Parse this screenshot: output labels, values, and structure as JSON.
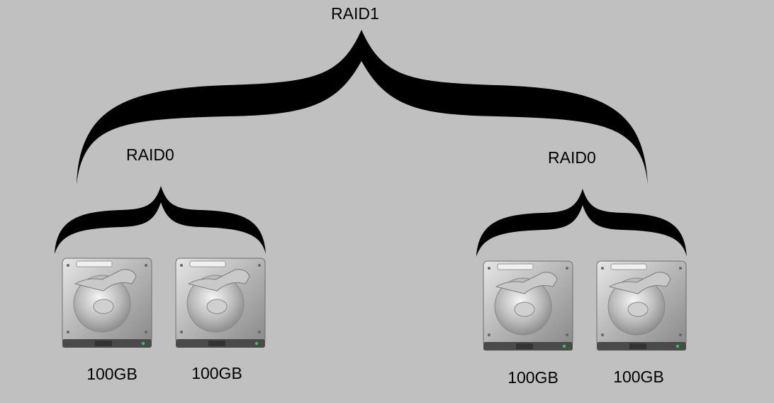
{
  "top": {
    "label": "RAID1"
  },
  "groups": [
    {
      "label": "RAID0",
      "disks": [
        {
          "capacity": "100GB"
        },
        {
          "capacity": "100GB"
        }
      ]
    },
    {
      "label": "RAID0",
      "disks": [
        {
          "capacity": "100GB"
        },
        {
          "capacity": "100GB"
        }
      ]
    }
  ],
  "colors": {
    "background": "#c0c0c0",
    "brace": "#000000",
    "led": "#2ecc40"
  }
}
